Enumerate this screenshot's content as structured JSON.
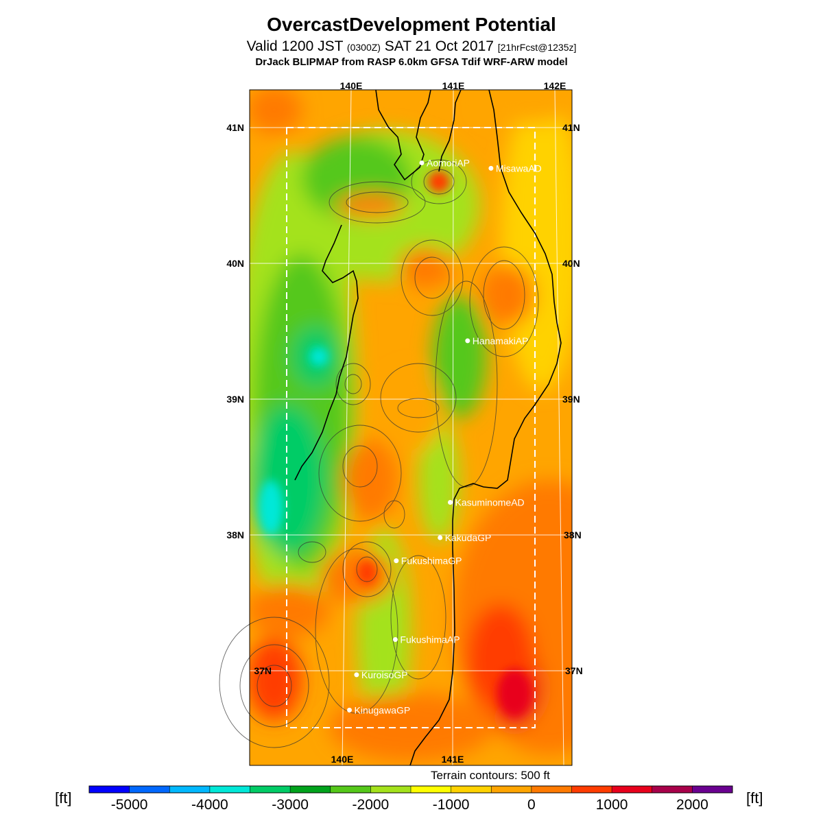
{
  "header": {
    "title": "OvercastDevelopment Potential",
    "valid_prefix": "Valid 1200 JST",
    "valid_utc": "(0300Z)",
    "valid_date": "SAT 21 Oct 2017",
    "forecast_tag": "[21hrFcst@1235z]",
    "model_line": "DrJack BLIPMAP from RASP 6.0km GFSA Tdif WRF-ARW model"
  },
  "map": {
    "lon_labels_top": [
      "140E",
      "141E",
      "142E"
    ],
    "lon_labels_bottom": [
      "140E",
      "141E"
    ],
    "lat_labels": [
      "41N",
      "40N",
      "39N",
      "38N",
      "37N"
    ],
    "airports": [
      {
        "name": "AomoriAP",
        "lat": 40.74,
        "lon": 140.69
      },
      {
        "name": "MisawaAD",
        "lat": 40.7,
        "lon": 141.37
      },
      {
        "name": "HanamakiAP",
        "lat": 39.43,
        "lon": 141.14
      },
      {
        "name": "KasuminomeAD",
        "lat": 38.24,
        "lon": 140.97
      },
      {
        "name": "KakudaGP",
        "lat": 37.98,
        "lon": 140.87
      },
      {
        "name": "FukushimaGP",
        "lat": 37.81,
        "lon": 140.44
      },
      {
        "name": "FukushimaAP",
        "lat": 37.23,
        "lon": 140.43
      },
      {
        "name": "KuroisoGP",
        "lat": 36.97,
        "lon": 140.05
      },
      {
        "name": "KinugawaGP",
        "lat": 36.71,
        "lon": 139.98
      }
    ],
    "terrain_note": "Terrain contours: 500 ft"
  },
  "colorbar": {
    "unit_left": "[ft]",
    "unit_right": "[ft]",
    "tick_labels": [
      "-5000",
      "-4000",
      "-3000",
      "-2000",
      "-1000",
      "0",
      "1000",
      "2000"
    ],
    "colors": [
      "#0000ff",
      "#0068ff",
      "#00b8ff",
      "#00e8d8",
      "#00cc66",
      "#00a31c",
      "#55c81a",
      "#a4e21c",
      "#ffff00",
      "#ffd200",
      "#ffa500",
      "#ff7a00",
      "#ff3c00",
      "#e8001c",
      "#a8004a",
      "#6a0090"
    ]
  }
}
